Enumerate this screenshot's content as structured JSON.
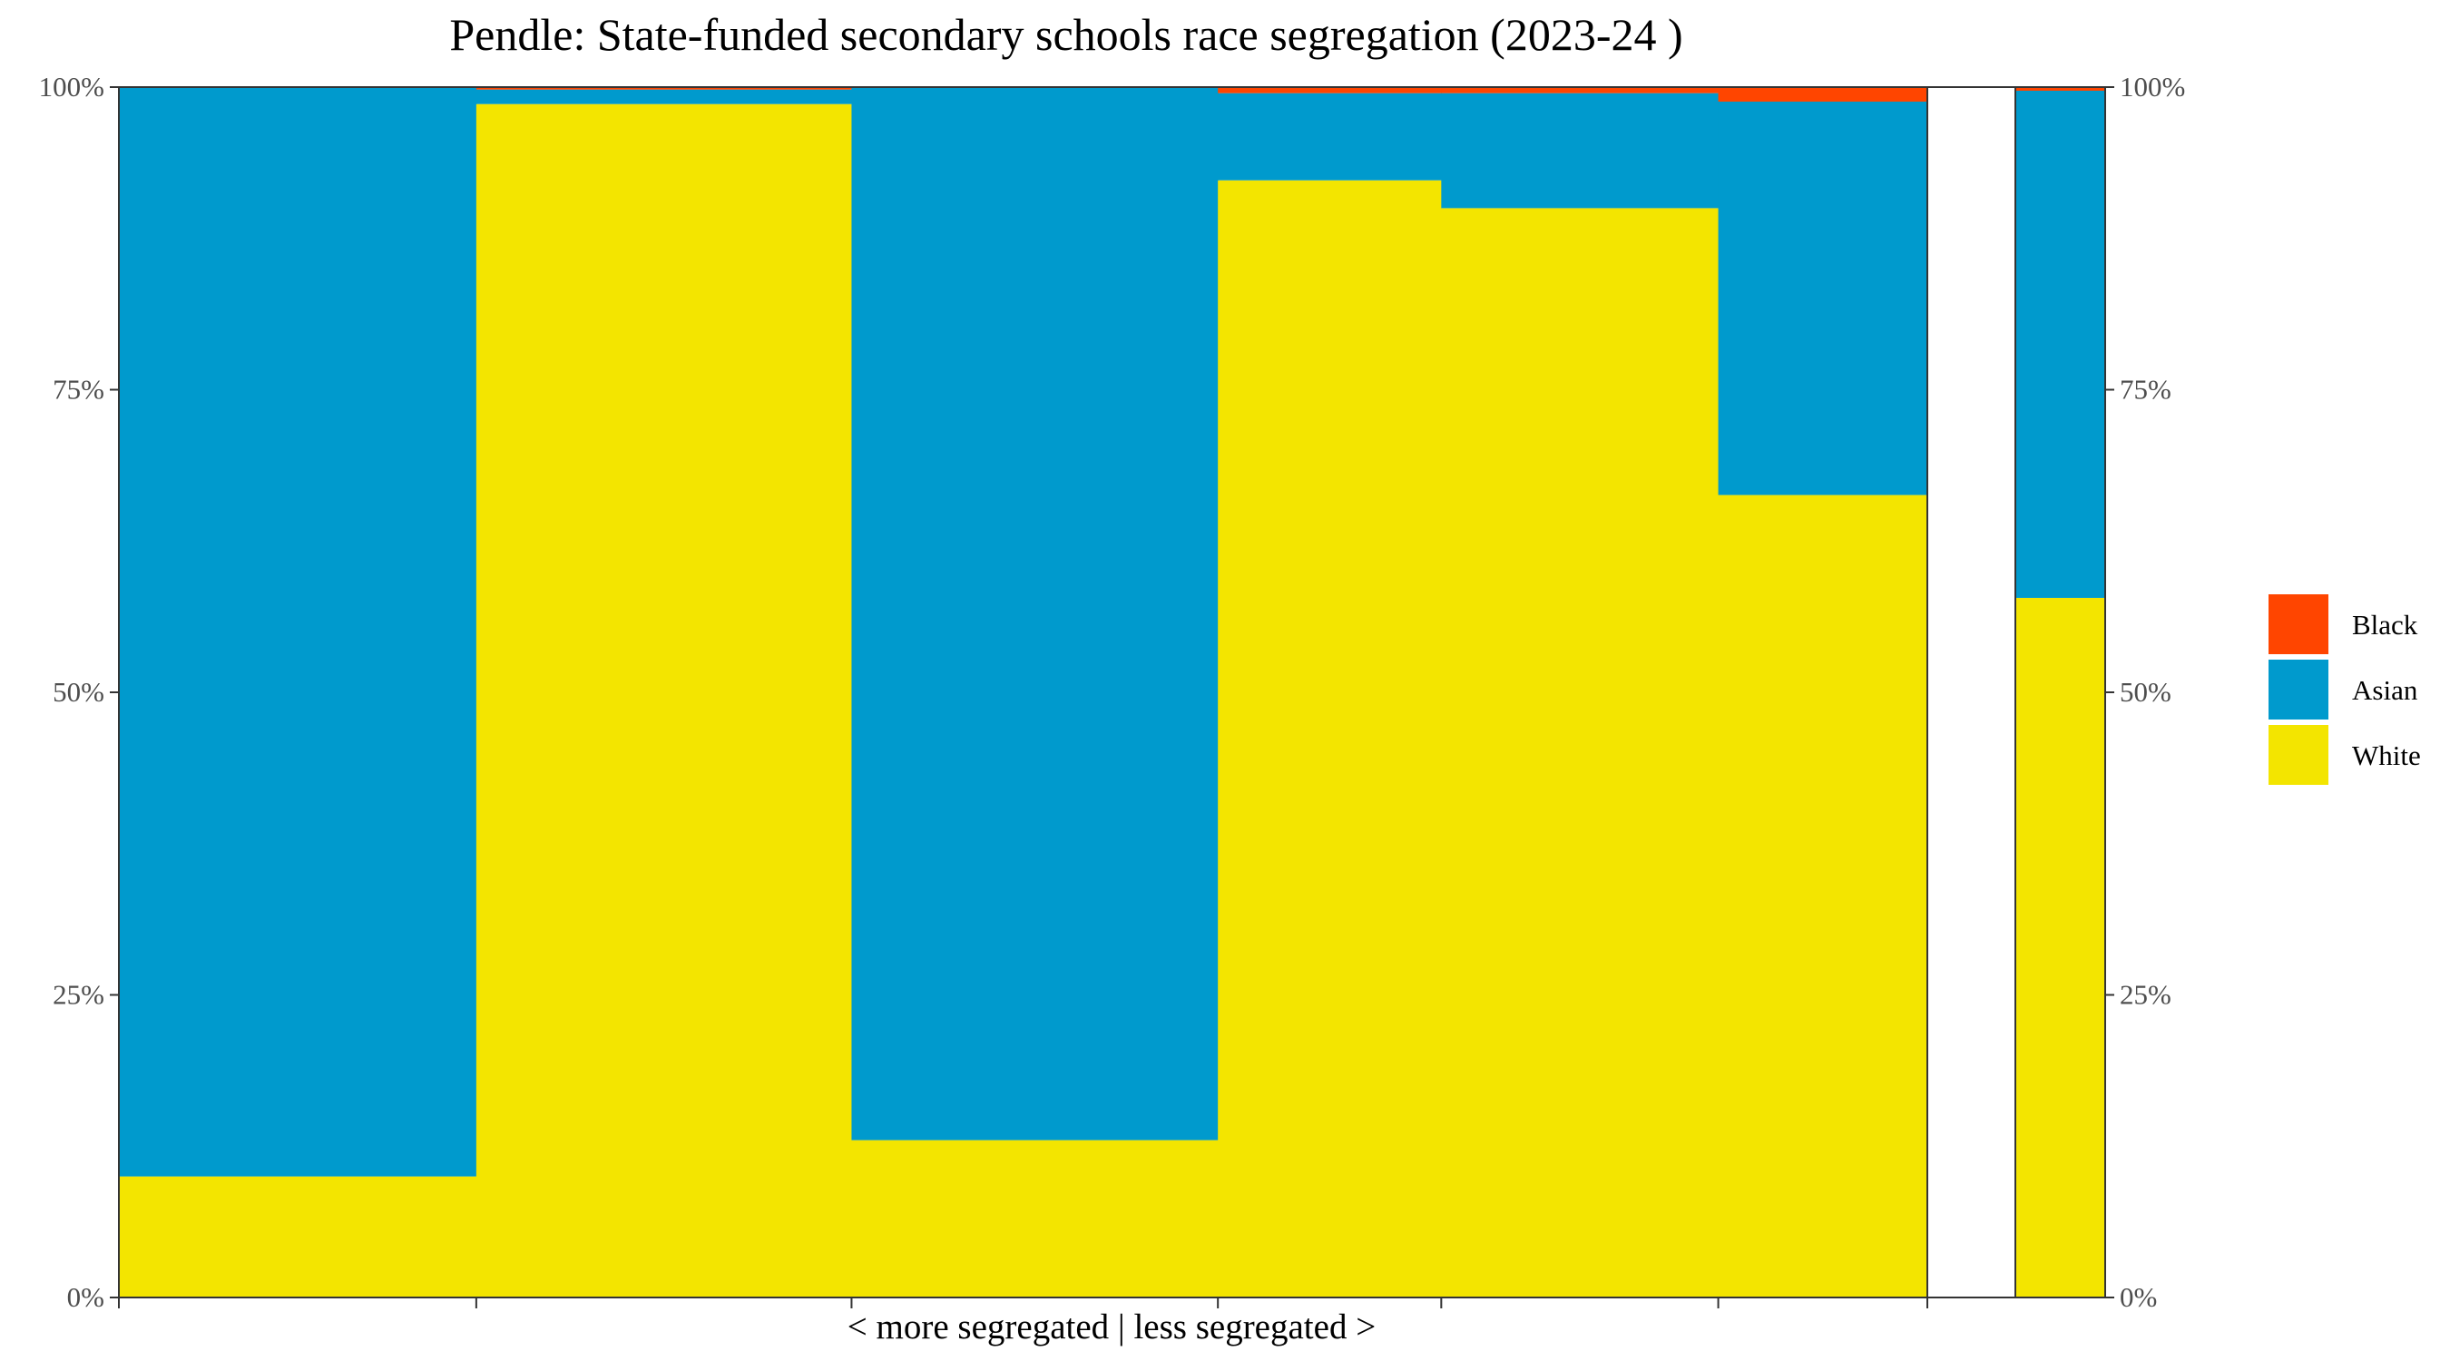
{
  "chart_data": {
    "type": "bar",
    "subtype": "stacked-100-variable-width",
    "title": "Pendle: State-funded secondary schools race segregation (2023-24 )",
    "xlabel": "< more segregated | less segregated >",
    "ylabel": "",
    "ylim": [
      0,
      100
    ],
    "y_ticks": [
      "0%",
      "25%",
      "50%",
      "75%",
      "100%"
    ],
    "secondary_y_axis": true,
    "grid": false,
    "legend_position": "right",
    "legend": [
      {
        "name": "Black",
        "color": "#FF4500"
      },
      {
        "name": "Asian",
        "color": "#009ACD"
      },
      {
        "name": "White",
        "color": "#F3E500"
      }
    ],
    "colors": {
      "Black": "#FF4500",
      "Asian": "#009ACD",
      "White": "#F3E500"
    },
    "bars": [
      {
        "width": 20,
        "values": {
          "White": 10,
          "Asian": 90,
          "Black": 0
        }
      },
      {
        "width": 21,
        "values": {
          "White": 98.6,
          "Asian": 1.2,
          "Black": 0.2
        }
      },
      {
        "width": 20.5,
        "values": {
          "White": 13,
          "Asian": 87,
          "Black": 0
        }
      },
      {
        "width": 12.5,
        "values": {
          "White": 92.3,
          "Asian": 7.2,
          "Black": 0.5
        }
      },
      {
        "width": 15.5,
        "values": {
          "White": 90,
          "Asian": 9.5,
          "Black": 0.5
        }
      },
      {
        "width": 11.7,
        "values": {
          "White": 66.3,
          "Asian": 32.5,
          "Black": 1.2
        }
      }
    ],
    "overall": {
      "values": {
        "White": 57.8,
        "Asian": 41.9,
        "Black": 0.3
      }
    }
  }
}
